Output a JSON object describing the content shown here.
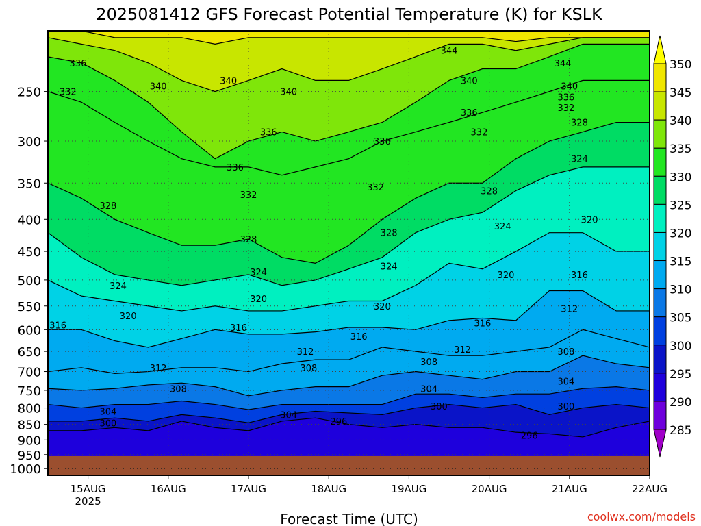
{
  "chart_data": {
    "type": "heatmap",
    "title": "2025081412 GFS Forecast Potential Temperature (K) for KSLK",
    "xlabel": "Forecast Time (UTC)",
    "ylabel": "",
    "credit": "coolwx.com/models",
    "x_ticks": [
      {
        "label": "15AUG",
        "sub": "2025"
      },
      {
        "label": "16AUG",
        "sub": ""
      },
      {
        "label": "17AUG",
        "sub": ""
      },
      {
        "label": "18AUG",
        "sub": ""
      },
      {
        "label": "19AUG",
        "sub": ""
      },
      {
        "label": "20AUG",
        "sub": ""
      },
      {
        "label": "21AUG",
        "sub": ""
      },
      {
        "label": "22AUG",
        "sub": ""
      }
    ],
    "xlim": [
      "2025-08-14T12:00Z",
      "2025-08-22T00:00Z"
    ],
    "y_axis_scale": "pressure (log)",
    "y_ticks": [
      250,
      300,
      350,
      400,
      450,
      500,
      550,
      600,
      650,
      700,
      750,
      800,
      850,
      900,
      950,
      1000
    ],
    "ylim": [
      200,
      1025
    ],
    "ground_pressure": 955,
    "grid": true,
    "colorbar": {
      "levels": [
        285,
        290,
        295,
        300,
        305,
        310,
        315,
        320,
        325,
        330,
        335,
        340,
        345,
        350
      ],
      "colors": [
        "#a000c8",
        "#6e00dc",
        "#1e00dc",
        "#0a14c8",
        "#0040e0",
        "#0a78e6",
        "#00aaf0",
        "#00d2e6",
        "#00f0c0",
        "#00dc64",
        "#22e622",
        "#7fe60a",
        "#c8e600",
        "#f0e600",
        "#ffff00"
      ]
    },
    "contour_interval": 4,
    "contours": [
      {
        "value": 296,
        "p": [
          870,
          870,
          860,
          870,
          840,
          860,
          870,
          840,
          830,
          850,
          860,
          850,
          860,
          860,
          875,
          880,
          890,
          860,
          840
        ]
      },
      {
        "value": 300,
        "p": [
          840,
          840,
          830,
          840,
          820,
          830,
          845,
          820,
          810,
          815,
          820,
          800,
          790,
          800,
          790,
          820,
          800,
          790,
          800
        ]
      },
      {
        "value": 304,
        "p": [
          790,
          800,
          790,
          790,
          780,
          790,
          805,
          790,
          790,
          790,
          790,
          760,
          760,
          770,
          760,
          760,
          745,
          740,
          750
        ]
      },
      {
        "value": 308,
        "p": [
          745,
          750,
          745,
          735,
          730,
          740,
          765,
          750,
          740,
          740,
          710,
          700,
          710,
          720,
          700,
          700,
          660,
          680,
          690
        ]
      },
      {
        "value": 312,
        "p": [
          700,
          690,
          705,
          700,
          690,
          690,
          700,
          680,
          670,
          670,
          640,
          650,
          660,
          660,
          650,
          640,
          600,
          620,
          640
        ]
      },
      {
        "value": 316,
        "p": [
          600,
          600,
          625,
          640,
          620,
          600,
          610,
          610,
          605,
          595,
          595,
          600,
          580,
          575,
          580,
          520,
          520,
          560,
          560
        ]
      },
      {
        "value": 320,
        "p": [
          500,
          530,
          540,
          550,
          560,
          550,
          560,
          560,
          550,
          540,
          540,
          510,
          470,
          480,
          450,
          420,
          420,
          450,
          450
        ]
      },
      {
        "value": 324,
        "p": [
          420,
          460,
          490,
          500,
          510,
          500,
          490,
          510,
          500,
          480,
          460,
          420,
          400,
          390,
          360,
          340,
          330,
          330,
          330
        ]
      },
      {
        "value": 328,
        "p": [
          350,
          370,
          400,
          420,
          440,
          440,
          430,
          460,
          470,
          440,
          400,
          370,
          350,
          350,
          320,
          300,
          290,
          280,
          280
        ]
      },
      {
        "value": 332,
        "p": [
          250,
          260,
          280,
          300,
          320,
          330,
          330,
          340,
          330,
          320,
          300,
          290,
          280,
          270,
          260,
          250,
          240,
          240,
          240
        ]
      },
      {
        "value": 336,
        "p": [
          220,
          225,
          240,
          260,
          290,
          320,
          300,
          290,
          300,
          290,
          280,
          260,
          240,
          230,
          230,
          220,
          210,
          210,
          210
        ]
      },
      {
        "value": 340,
        "p": [
          205,
          210,
          215,
          225,
          240,
          250,
          240,
          230,
          240,
          240,
          230,
          220,
          210,
          210,
          215,
          210,
          205,
          205,
          205
        ]
      },
      {
        "value": 344,
        "p": [
          200,
          200,
          205,
          205,
          205,
          210,
          205,
          205,
          205,
          205,
          205,
          205,
          205,
          205,
          208,
          205,
          205,
          205,
          205
        ]
      }
    ],
    "contour_labels": [
      {
        "text": "336",
        "t": "2025-08-14T21:00Z",
        "p": 225
      },
      {
        "text": "332",
        "t": "2025-08-14T18:00Z",
        "p": 250
      },
      {
        "text": "340",
        "t": "2025-08-15T21:00Z",
        "p": 245
      },
      {
        "text": "340",
        "t": "2025-08-16T18:00Z",
        "p": 240
      },
      {
        "text": "340",
        "t": "2025-08-17T12:00Z",
        "p": 250
      },
      {
        "text": "344",
        "t": "2025-08-19T12:00Z",
        "p": 215
      },
      {
        "text": "340",
        "t": "2025-08-19T18:00Z",
        "p": 240
      },
      {
        "text": "344",
        "t": "2025-08-20T22:00Z",
        "p": 225
      },
      {
        "text": "340",
        "t": "2025-08-21T00:00Z",
        "p": 245
      },
      {
        "text": "336",
        "t": "2025-08-20T23:00Z",
        "p": 255
      },
      {
        "text": "332",
        "t": "2025-08-20T23:00Z",
        "p": 265
      },
      {
        "text": "328",
        "t": "2025-08-21T03:00Z",
        "p": 280
      },
      {
        "text": "336",
        "t": "2025-08-19T18:00Z",
        "p": 270
      },
      {
        "text": "332",
        "t": "2025-08-19T21:00Z",
        "p": 290
      },
      {
        "text": "336",
        "t": "2025-08-17T06:00Z",
        "p": 290
      },
      {
        "text": "336",
        "t": "2025-08-18T16:00Z",
        "p": 300
      },
      {
        "text": "336",
        "t": "2025-08-16T20:00Z",
        "p": 330
      },
      {
        "text": "332",
        "t": "2025-08-17T00:00Z",
        "p": 365
      },
      {
        "text": "332",
        "t": "2025-08-18T14:00Z",
        "p": 355
      },
      {
        "text": "328",
        "t": "2025-08-20T00:00Z",
        "p": 360
      },
      {
        "text": "324",
        "t": "2025-08-21T03:00Z",
        "p": 320
      },
      {
        "text": "328",
        "t": "2025-08-15T06:00Z",
        "p": 380
      },
      {
        "text": "328",
        "t": "2025-08-17T00:00Z",
        "p": 430
      },
      {
        "text": "328",
        "t": "2025-08-18T18:00Z",
        "p": 420
      },
      {
        "text": "320",
        "t": "2025-08-21T06:00Z",
        "p": 400
      },
      {
        "text": "324",
        "t": "2025-08-20T04:00Z",
        "p": 410
      },
      {
        "text": "324",
        "t": "2025-08-17T03:00Z",
        "p": 485
      },
      {
        "text": "324",
        "t": "2025-08-18T18:00Z",
        "p": 475
      },
      {
        "text": "320",
        "t": "2025-08-20T05:00Z",
        "p": 490
      },
      {
        "text": "324",
        "t": "2025-08-15T09:00Z",
        "p": 510
      },
      {
        "text": "316",
        "t": "2025-08-21T03:00Z",
        "p": 490
      },
      {
        "text": "320",
        "t": "2025-08-17T03:00Z",
        "p": 535
      },
      {
        "text": "320",
        "t": "2025-08-18T16:00Z",
        "p": 550
      },
      {
        "text": "312",
        "t": "2025-08-21T00:00Z",
        "p": 555
      },
      {
        "text": "320",
        "t": "2025-08-15T12:00Z",
        "p": 570
      },
      {
        "text": "316",
        "t": "2025-08-14T15:00Z",
        "p": 590
      },
      {
        "text": "316",
        "t": "2025-08-16T21:00Z",
        "p": 595
      },
      {
        "text": "316",
        "t": "2025-08-18T09:00Z",
        "p": 615
      },
      {
        "text": "316",
        "t": "2025-08-19T22:00Z",
        "p": 585
      },
      {
        "text": "312",
        "t": "2025-08-17T17:00Z",
        "p": 650
      },
      {
        "text": "312",
        "t": "2025-08-19T16:00Z",
        "p": 645
      },
      {
        "text": "308",
        "t": "2025-08-20T23:00Z",
        "p": 650
      },
      {
        "text": "312",
        "t": "2025-08-15T21:00Z",
        "p": 690
      },
      {
        "text": "308",
        "t": "2025-08-17T18:00Z",
        "p": 690
      },
      {
        "text": "308",
        "t": "2025-08-19T06:00Z",
        "p": 675
      },
      {
        "text": "304",
        "t": "2025-08-20T23:00Z",
        "p": 725
      },
      {
        "text": "308",
        "t": "2025-08-16T03:00Z",
        "p": 745
      },
      {
        "text": "304",
        "t": "2025-08-19T06:00Z",
        "p": 745
      },
      {
        "text": "304",
        "t": "2025-08-15T06:00Z",
        "p": 810
      },
      {
        "text": "304",
        "t": "2025-08-17T12:00Z",
        "p": 820
      },
      {
        "text": "300",
        "t": "2025-08-19T09:00Z",
        "p": 795
      },
      {
        "text": "300",
        "t": "2025-08-20T23:00Z",
        "p": 795
      },
      {
        "text": "300",
        "t": "2025-08-15T06:00Z",
        "p": 845
      },
      {
        "text": "296",
        "t": "2025-08-18T03:00Z",
        "p": 840
      },
      {
        "text": "296",
        "t": "2025-08-20T12:00Z",
        "p": 885
      }
    ]
  }
}
